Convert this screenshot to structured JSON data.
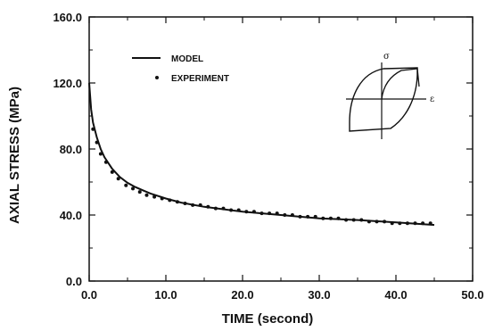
{
  "chart_data": {
    "type": "line",
    "xlabel": "TIME (second)",
    "ylabel": "AXIAL STRESS (MPa)",
    "xlim": [
      0,
      50
    ],
    "ylim": [
      0,
      160
    ],
    "x_ticks": [
      "0.0",
      "10.0",
      "20.0",
      "30.0",
      "40.0",
      "50.0"
    ],
    "y_ticks": [
      "0.0",
      "40.0",
      "80.0",
      "120.0",
      "160.0"
    ],
    "legend": {
      "model_label": "MODEL",
      "experiment_label": "EXPERIMENT",
      "placement": "top-left"
    },
    "series": [
      {
        "name": "MODEL",
        "style": "line",
        "x": [
          0,
          0.25,
          0.5,
          1,
          1.5,
          2,
          3,
          4,
          5,
          6,
          7,
          8,
          10,
          12,
          15,
          20,
          25,
          30,
          35,
          40,
          45
        ],
        "y": [
          120,
          104,
          96,
          87,
          80,
          75,
          68,
          63,
          59.5,
          57,
          55,
          53,
          50,
          47.5,
          45,
          42,
          40,
          38,
          37,
          35.5,
          34
        ]
      },
      {
        "name": "EXPERIMENT",
        "style": "points",
        "x": [
          0.5,
          1,
          1.5,
          2.2,
          3,
          3.8,
          4.8,
          5.7,
          6.6,
          7.5,
          8.5,
          9.5,
          10.5,
          11.5,
          12.5,
          13.5,
          14.5,
          15.5,
          16.5,
          17.5,
          18.5,
          19.5,
          20.5,
          21.5,
          22.5,
          23.5,
          24.5,
          25.5,
          26.5,
          27.5,
          28.5,
          29.5,
          30.5,
          31.5,
          32.5,
          33.5,
          34.5,
          35.5,
          36.5,
          37.5,
          38.5,
          39.5,
          40.5,
          41.5,
          42.5,
          43.5,
          44.5
        ],
        "y": [
          92,
          84,
          77,
          72,
          66,
          62,
          58,
          56,
          54,
          52,
          51,
          50,
          49,
          48,
          47,
          46,
          46,
          45,
          44,
          44,
          43,
          43,
          42,
          42,
          41,
          41,
          41,
          40,
          40,
          39,
          39,
          39,
          38,
          38,
          38,
          37,
          37,
          37,
          36,
          36,
          36,
          35,
          35,
          35,
          35,
          35,
          35
        ]
      }
    ],
    "inset": {
      "sigma_label": "σ",
      "epsilon_label": "ε"
    }
  }
}
